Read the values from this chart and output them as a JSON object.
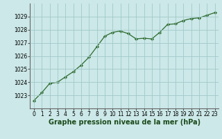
{
  "x": [
    0,
    1,
    2,
    3,
    4,
    5,
    6,
    7,
    8,
    9,
    10,
    11,
    12,
    13,
    14,
    15,
    16,
    17,
    18,
    19,
    20,
    21,
    22,
    23
  ],
  "y": [
    1022.6,
    1023.2,
    1023.9,
    1024.0,
    1024.4,
    1024.8,
    1025.3,
    1025.9,
    1026.7,
    1027.5,
    1027.8,
    1027.9,
    1027.7,
    1027.3,
    1027.35,
    1027.3,
    1027.8,
    1028.4,
    1028.45,
    1028.7,
    1028.85,
    1028.9,
    1029.1,
    1029.3
  ],
  "line_color": "#2d6a2d",
  "marker_color": "#2d6a2d",
  "bg_color": "#cce8e8",
  "grid_color": "#a0c8c8",
  "xlabel": "Graphe pression niveau de la mer (hPa)",
  "xlabel_color": "#1a4a1a",
  "ylim": [
    1022.0,
    1030.0
  ],
  "xlim": [
    -0.5,
    23.5
  ],
  "yticks": [
    1023,
    1024,
    1025,
    1026,
    1027,
    1028,
    1029
  ],
  "xticks": [
    0,
    1,
    2,
    3,
    4,
    5,
    6,
    7,
    8,
    9,
    10,
    11,
    12,
    13,
    14,
    15,
    16,
    17,
    18,
    19,
    20,
    21,
    22,
    23
  ],
  "tick_fontsize": 5.5,
  "xlabel_fontsize": 7.0,
  "marker_size": 2.2,
  "line_width": 0.9
}
